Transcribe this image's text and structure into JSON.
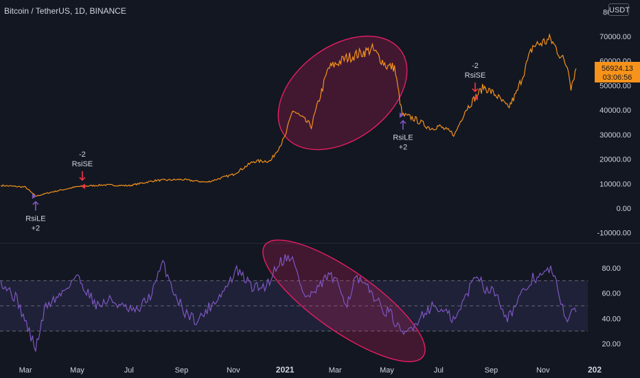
{
  "header": {
    "symbol_title": "Bitcoin / TetherUS, 1D, BINANCE",
    "currency": "USDT"
  },
  "last_price": {
    "value": "56924.13",
    "countdown": "03:06:56"
  },
  "colors": {
    "background": "#131722",
    "price_line": "#f7931a",
    "rsi_line": "#7e57c2",
    "highlight": "#e91e63",
    "rsi_band": "#2a2a4a",
    "text": "#d1d4dc"
  },
  "chart_data": [
    {
      "type": "line",
      "name": "price",
      "ylim": [
        -10000,
        80000
      ],
      "yticks": [
        -10000,
        0,
        10000,
        20000,
        30000,
        40000,
        50000,
        60000,
        70000
      ],
      "ytick_labels": [
        "-10000.00",
        "0.00",
        "10000.00",
        "20000.00",
        "30000.00",
        "40000.00",
        "50000.00",
        "60000.00",
        "70000.00"
      ],
      "top_tick_label": "80",
      "x": [
        "2020-02-01",
        "2020-03-01",
        "2020-03-13",
        "2020-04-01",
        "2020-05-01",
        "2020-06-01",
        "2020-07-01",
        "2020-08-01",
        "2020-09-01",
        "2020-10-01",
        "2020-11-01",
        "2020-11-25",
        "2020-12-15",
        "2021-01-01",
        "2021-01-10",
        "2021-02-01",
        "2021-02-21",
        "2021-03-13",
        "2021-04-14",
        "2021-05-01",
        "2021-05-10",
        "2021-05-19",
        "2021-06-01",
        "2021-06-22",
        "2021-07-01",
        "2021-07-20",
        "2021-08-01",
        "2021-08-23",
        "2021-09-07",
        "2021-09-21",
        "2021-10-01",
        "2021-10-20",
        "2021-11-10",
        "2021-12-01",
        "2021-12-04",
        "2021-12-10"
      ],
      "y": [
        9300,
        8600,
        4900,
        6600,
        8800,
        9500,
        9200,
        11300,
        11700,
        10600,
        13800,
        19100,
        19300,
        29000,
        40000,
        33500,
        57000,
        61000,
        64800,
        57800,
        57500,
        38000,
        36700,
        32500,
        33500,
        30000,
        39700,
        49500,
        46000,
        40800,
        47000,
        66000,
        68789,
        57000,
        49500,
        56924
      ],
      "signals": [
        {
          "date": "2020-03-13",
          "label": "RsiLE",
          "qty": "+2",
          "side": "long"
        },
        {
          "date": "2020-05-07",
          "label": "RsiSE",
          "qty": "-2",
          "side": "short"
        },
        {
          "date": "2021-05-20",
          "label": "RsiLE",
          "qty": "+2",
          "side": "long"
        },
        {
          "date": "2021-08-13",
          "label": "RsiSE",
          "qty": "-2",
          "side": "short"
        }
      ],
      "highlight_period": [
        "2021-01-01",
        "2021-05-15"
      ]
    },
    {
      "type": "line",
      "name": "rsi",
      "ylim": [
        12,
        94
      ],
      "yticks": [
        20,
        40,
        60,
        80
      ],
      "ytick_labels": [
        "20.00",
        "40.00",
        "60.00",
        "80.00"
      ],
      "levels": [
        30,
        50,
        70
      ],
      "x": [
        "2020-02-01",
        "2020-02-20",
        "2020-03-13",
        "2020-03-25",
        "2020-04-10",
        "2020-04-30",
        "2020-05-10",
        "2020-05-25",
        "2020-06-10",
        "2020-06-25",
        "2020-07-10",
        "2020-07-28",
        "2020-08-10",
        "2020-08-25",
        "2020-09-05",
        "2020-09-20",
        "2020-10-05",
        "2020-10-21",
        "2020-11-05",
        "2020-11-25",
        "2020-12-10",
        "2020-12-25",
        "2021-01-08",
        "2021-01-25",
        "2021-02-08",
        "2021-02-21",
        "2021-03-05",
        "2021-03-15",
        "2021-03-25",
        "2021-04-14",
        "2021-04-25",
        "2021-05-05",
        "2021-05-19",
        "2021-06-01",
        "2021-06-15",
        "2021-06-25",
        "2021-07-10",
        "2021-07-20",
        "2021-08-05",
        "2021-08-15",
        "2021-08-25",
        "2021-09-07",
        "2021-09-20",
        "2021-10-05",
        "2021-10-20",
        "2021-11-01",
        "2021-11-10",
        "2021-11-20",
        "2021-11-28",
        "2021-12-10"
      ],
      "y": [
        70,
        55,
        16,
        50,
        58,
        74,
        64,
        50,
        55,
        48,
        45,
        60,
        84,
        58,
        45,
        38,
        50,
        62,
        78,
        64,
        66,
        85,
        90,
        56,
        62,
        75,
        66,
        52,
        72,
        60,
        48,
        44,
        26,
        34,
        46,
        50,
        44,
        38,
        62,
        76,
        64,
        60,
        40,
        56,
        72,
        74,
        80,
        60,
        40,
        45
      ]
    }
  ],
  "x_axis": {
    "tick_labels": [
      "Mar",
      "May",
      "Jul",
      "Sep",
      "Nov",
      "2021",
      "Mar",
      "May",
      "Jul",
      "Sep",
      "Nov",
      "202"
    ]
  }
}
